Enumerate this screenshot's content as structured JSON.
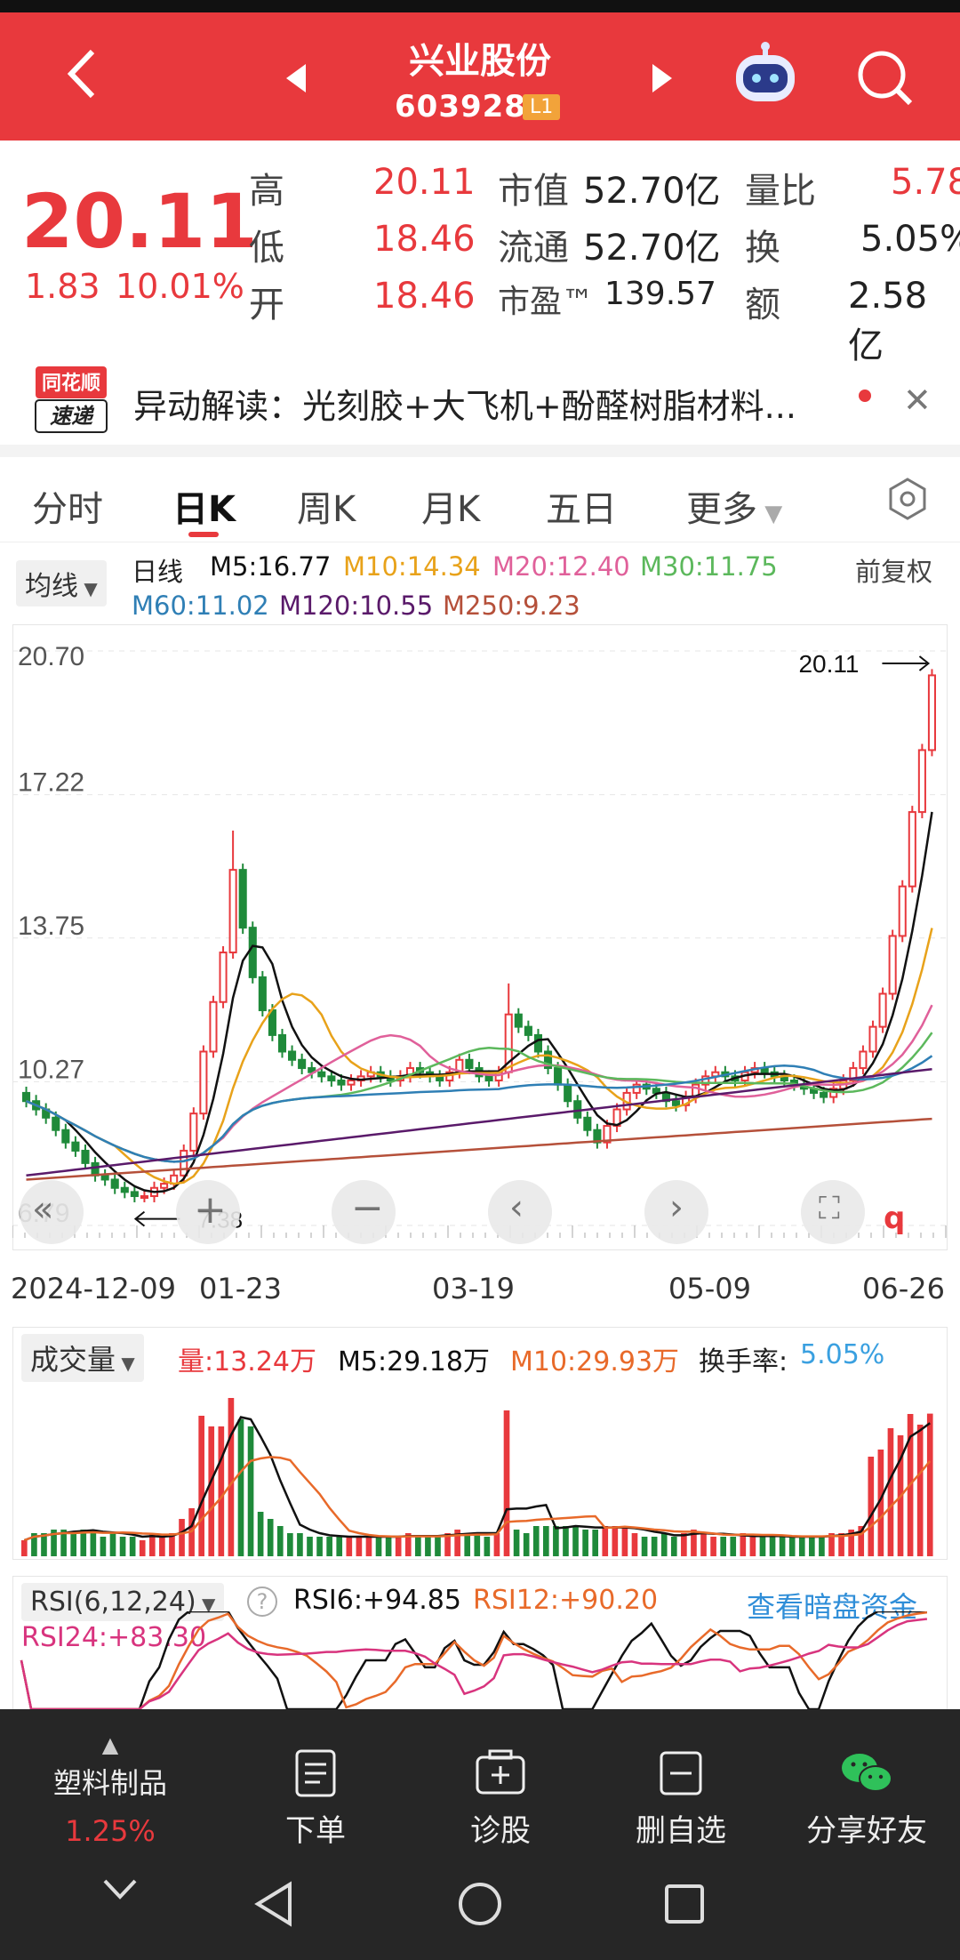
{
  "header": {
    "title": "兴业股份",
    "code": "603928",
    "badge": "L1"
  },
  "quote": {
    "price": "20.11",
    "change": "1.83",
    "change_pct": "10.01%",
    "rows": [
      {
        "l1": "高",
        "v1": "20.11",
        "l2": "市值",
        "v2": "52.70亿",
        "l3": "量比",
        "v3": "5.78"
      },
      {
        "l1": "低",
        "v1": "18.46",
        "l2": "流通",
        "v2": "52.70亿",
        "l3": "换",
        "v3": "5.05%"
      },
      {
        "l1": "开",
        "v1": "18.46",
        "l2": "市盈™",
        "v2": "139.57",
        "l3": "额",
        "v3": "2.58亿"
      }
    ]
  },
  "news": {
    "logo_top": "同花顺",
    "logo_bottom": "速递",
    "text": "异动解读：光刻胶+大飞机+酚醛树脂材料..."
  },
  "tabs": [
    "分时",
    "日K",
    "周K",
    "月K",
    "五日",
    "更多"
  ],
  "active_tab": "日K",
  "ma": {
    "selector": "均线",
    "period": "日线",
    "m5": "M5:16.77",
    "m10": "M10:14.34",
    "m20": "M20:12.40",
    "m30": "M30:11.75",
    "m60": "M60:11.02",
    "m120": "M120:10.55",
    "m250": "M250:9.23",
    "adjust": "前复权",
    "colors": {
      "m5": "#111111",
      "m10": "#e8a21a",
      "m20": "#e0609a",
      "m30": "#5cb85c",
      "m60": "#2f7fb5",
      "m120": "#5a1a6a",
      "m250": "#b5503a"
    }
  },
  "chart_data": {
    "type": "candlestick",
    "y_ticks": [
      "20.70",
      "17.22",
      "13.75",
      "10.27",
      "6.79"
    ],
    "ylim": [
      6.79,
      20.7
    ],
    "x_labels": [
      "2024-12-09",
      "01-23",
      "03-19",
      "05-09",
      "06-26"
    ],
    "high_marker": "20.11",
    "low_marker": "7.38",
    "closes": [
      9.8,
      9.6,
      9.4,
      9.1,
      8.8,
      8.6,
      8.3,
      8.0,
      7.9,
      7.7,
      7.6,
      7.5,
      7.5,
      7.7,
      7.8,
      8.0,
      8.6,
      9.5,
      11.0,
      12.2,
      13.4,
      15.4,
      14.0,
      12.8,
      12.0,
      11.4,
      11.0,
      10.8,
      10.6,
      10.5,
      10.4,
      10.3,
      10.2,
      10.3,
      10.4,
      10.5,
      10.4,
      10.3,
      10.4,
      10.6,
      10.5,
      10.4,
      10.3,
      10.5,
      10.8,
      10.6,
      10.4,
      10.3,
      10.5,
      11.9,
      11.6,
      11.4,
      11.0,
      10.6,
      10.2,
      9.8,
      9.4,
      9.1,
      8.8,
      9.2,
      9.6,
      10.0,
      10.2,
      10.1,
      10.0,
      9.8,
      9.7,
      9.9,
      10.2,
      10.4,
      10.5,
      10.4,
      10.3,
      10.5,
      10.6,
      10.5,
      10.4,
      10.3,
      10.2,
      10.1,
      10.0,
      9.9,
      10.1,
      10.3,
      10.6,
      11.0,
      11.6,
      12.4,
      13.8,
      15.0,
      16.8,
      18.3,
      20.11
    ],
    "volume": {
      "selector": "成交量",
      "vol": "量:13.24万",
      "m5": "M5:29.18万",
      "m10": "M10:29.93万",
      "turnover_label": "换手率:",
      "turnover": "5.05%"
    },
    "rsi": {
      "selector": "RSI(6,12,24)",
      "rsi6": "RSI6:+94.85",
      "rsi12": "RSI12:+90.20",
      "rsi24": "RSI24:+83.30",
      "link": "查看暗盘资金"
    }
  },
  "bottom_nav": {
    "sector": "塑料制品",
    "sector_change": "1.25%",
    "items": [
      "下单",
      "诊股",
      "删自选",
      "分享好友"
    ]
  }
}
